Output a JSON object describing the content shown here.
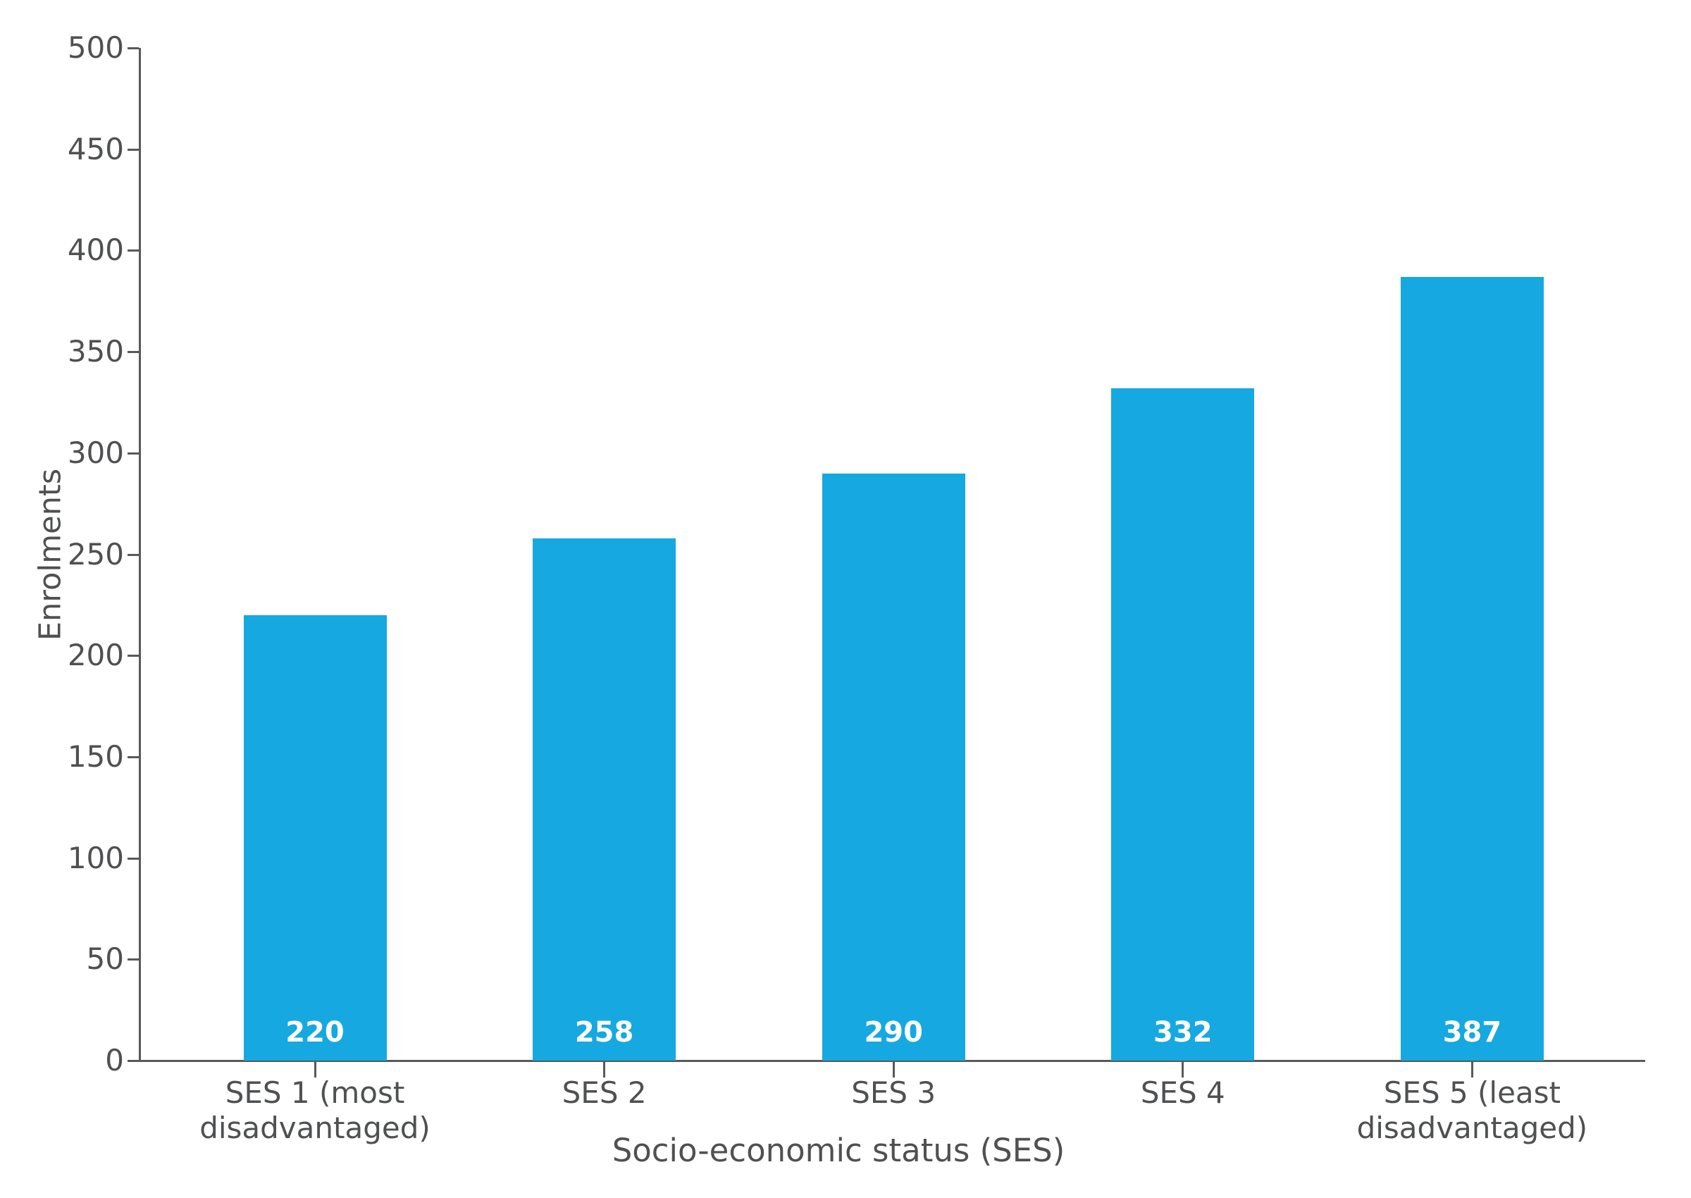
{
  "chart_data": {
    "type": "bar",
    "title": "",
    "xlabel": "Socio-economic status (SES)",
    "ylabel": "Enrolments",
    "categories": [
      "SES 1 (most\ndisadvantaged)",
      "SES 2",
      "SES 3",
      "SES 4",
      "SES 5 (least\ndisadvantaged)"
    ],
    "values": [
      220,
      258,
      290,
      332,
      387
    ],
    "bar_value_labels": [
      "220",
      "258",
      "290",
      "332",
      "387"
    ],
    "ylim": [
      0,
      500
    ],
    "ytick_step": 50,
    "ytick_labels": [
      "0",
      "50",
      "100",
      "150",
      "200",
      "250",
      "300",
      "350",
      "400",
      "450",
      "500"
    ],
    "grid": "off",
    "legend": "none",
    "colors": {
      "bar": "#16A8E0",
      "axis_line": "#58595B",
      "tick_label": "#4F5051",
      "bar_value_text": "#FFFFFF",
      "background": "#FFFFFF"
    }
  }
}
